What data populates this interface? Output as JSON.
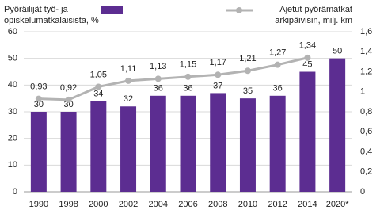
{
  "chart_data": {
    "type": "bar-line",
    "categories": [
      "1990",
      "1998",
      "2000",
      "2002",
      "2004",
      "2006",
      "2008",
      "2010",
      "2012",
      "2014",
      "2020*"
    ],
    "series": [
      {
        "name": "Pyöräilijät työ- ja opiskelumatkalaisista, %",
        "type": "bar",
        "color": "#5c2d91",
        "values": [
          30,
          30,
          34,
          32,
          36,
          36,
          37,
          35,
          36,
          45,
          50
        ]
      },
      {
        "name": "Ajetut pyörämatkat arkipäivisin, milj. km",
        "type": "line",
        "axis": "y2",
        "color": "#b3b3b3",
        "values": [
          0.93,
          0.92,
          1.05,
          1.11,
          1.13,
          1.15,
          1.17,
          1.21,
          1.27,
          1.34,
          null
        ],
        "value_labels": [
          "0,93",
          "0,92",
          "1,05",
          "1,11",
          "1,13",
          "1,15",
          "1,17",
          "1,21",
          "1,27",
          "1,34",
          null
        ]
      }
    ],
    "ylim": [
      0,
      60
    ],
    "yticks": [
      0,
      10,
      20,
      30,
      40,
      50,
      60
    ],
    "y2lim": [
      0,
      1.6
    ],
    "y2ticks": [
      0,
      {
        "value": 0.2,
        "label": "0,2"
      },
      {
        "value": 0.4,
        "label": "0,4"
      },
      {
        "value": 0.6,
        "label": "0,6"
      },
      {
        "value": 0.8,
        "label": "0,8"
      },
      1,
      {
        "value": 1.2,
        "label": "1,2"
      },
      {
        "value": 1.4,
        "label": "1,4"
      },
      {
        "value": 1.6,
        "label": "1,6"
      }
    ],
    "grid": true
  }
}
